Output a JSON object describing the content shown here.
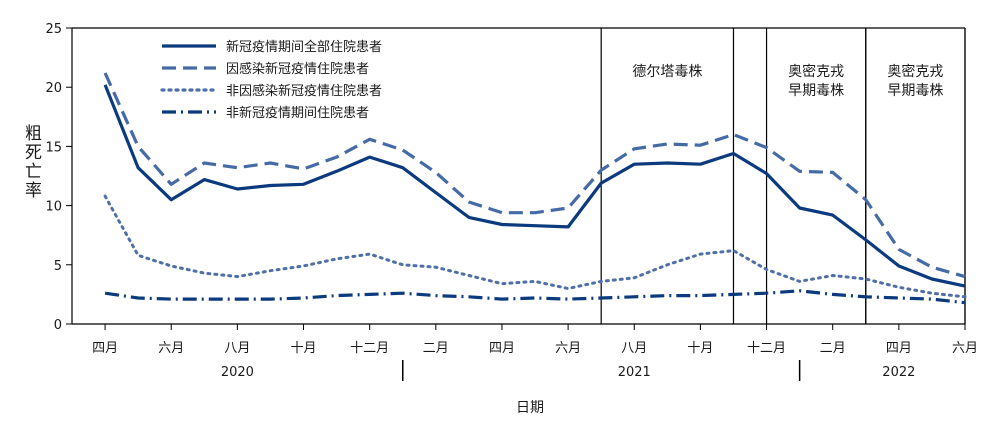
{
  "chart_data": {
    "type": "line",
    "title": "",
    "ylabel": "粗死亡率",
    "xlabel": "日期",
    "ylim": [
      0,
      25
    ],
    "yticks": [
      0,
      5,
      10,
      15,
      20,
      25
    ],
    "grid": false,
    "legend_position": "top-left",
    "x_range": [
      "2020-03",
      "2022-06"
    ],
    "month_ticks": [
      {
        "date": "2020-04",
        "label": "四月"
      },
      {
        "date": "2020-06",
        "label": "六月"
      },
      {
        "date": "2020-08",
        "label": "八月"
      },
      {
        "date": "2020-10",
        "label": "十月"
      },
      {
        "date": "2020-12",
        "label": "十二月"
      },
      {
        "date": "2021-02",
        "label": "二月"
      },
      {
        "date": "2021-04",
        "label": "四月"
      },
      {
        "date": "2021-06",
        "label": "六月"
      },
      {
        "date": "2021-08",
        "label": "八月"
      },
      {
        "date": "2021-10",
        "label": "十月"
      },
      {
        "date": "2021-12",
        "label": "十二月"
      },
      {
        "date": "2022-02",
        "label": "二月"
      },
      {
        "date": "2022-04",
        "label": "四月"
      },
      {
        "date": "2022-06",
        "label": "六月"
      }
    ],
    "year_labels": [
      {
        "label": "2020",
        "center": "2020-08"
      },
      {
        "label": "2021",
        "center": "2021-08"
      },
      {
        "label": "2022",
        "center": "2022-04"
      }
    ],
    "year_dividers": [
      "2021-01",
      "2022-01"
    ],
    "periods": [
      {
        "label_lines": [
          "德尔塔毒株"
        ],
        "start": "2021-07",
        "end": "2021-11"
      },
      {
        "label_lines": [
          "奥密克戎",
          "早期毒株"
        ],
        "start": "2021-12",
        "end": "2022-03"
      },
      {
        "label_lines": [
          "奥密克戎",
          "早期毒株"
        ],
        "start": "2022-03",
        "end": "2022-06"
      }
    ],
    "x": [
      "2020-04",
      "2020-05",
      "2020-06",
      "2020-07",
      "2020-08",
      "2020-09",
      "2020-10",
      "2020-11",
      "2020-12",
      "2021-01",
      "2021-02",
      "2021-03",
      "2021-04",
      "2021-05",
      "2021-06",
      "2021-07",
      "2021-08",
      "2021-09",
      "2021-10",
      "2021-11",
      "2021-12",
      "2022-01",
      "2022-02",
      "2022-03",
      "2022-04",
      "2022-05",
      "2022-06"
    ],
    "series": [
      {
        "name": "新冠疫情期间全部住院患者",
        "color": "#0b3a7e",
        "dash": "solid",
        "values": [
          20.2,
          13.2,
          10.5,
          12.2,
          11.4,
          11.7,
          11.8,
          12.9,
          14.1,
          13.2,
          11.1,
          9.0,
          8.4,
          8.3,
          8.2,
          11.9,
          13.5,
          13.6,
          13.5,
          14.4,
          12.7,
          9.8,
          9.2,
          7.1,
          4.9,
          3.8,
          3.2
        ]
      },
      {
        "name": "因感染新冠疫情住院患者",
        "color": "#456ba7",
        "dash": "dash",
        "values": [
          21.2,
          15.0,
          11.8,
          13.6,
          13.2,
          13.6,
          13.1,
          14.1,
          15.6,
          14.7,
          12.8,
          10.3,
          9.4,
          9.4,
          9.8,
          13.0,
          14.8,
          15.2,
          15.1,
          16.0,
          14.9,
          12.9,
          12.8,
          10.5,
          6.3,
          4.8,
          4.0
        ]
      },
      {
        "name": "非因感染新冠疫情住院患者",
        "color": "#4f70a6",
        "dash": "dot",
        "values": [
          10.8,
          5.8,
          4.9,
          4.3,
          4.0,
          4.5,
          4.9,
          5.5,
          5.9,
          5.0,
          4.8,
          4.1,
          3.4,
          3.6,
          3.0,
          3.6,
          3.9,
          5.0,
          5.9,
          6.2,
          4.6,
          3.6,
          4.1,
          3.8,
          3.1,
          2.6,
          2.3
        ]
      },
      {
        "name": "非新冠疫情期间住院患者",
        "color": "#0b3a7e",
        "dash": "dashdot",
        "values": [
          2.6,
          2.2,
          2.1,
          2.1,
          2.1,
          2.1,
          2.2,
          2.4,
          2.5,
          2.6,
          2.4,
          2.3,
          2.1,
          2.2,
          2.1,
          2.2,
          2.3,
          2.4,
          2.4,
          2.5,
          2.6,
          2.8,
          2.5,
          2.3,
          2.2,
          2.1,
          1.8
        ]
      }
    ]
  }
}
